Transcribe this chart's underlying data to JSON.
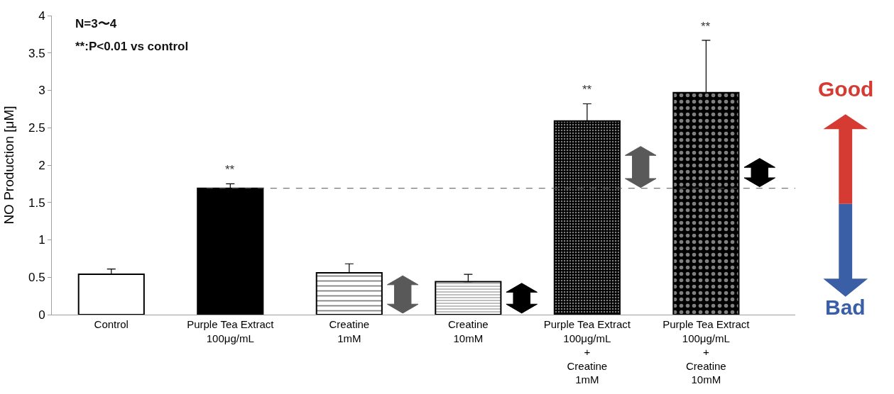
{
  "chart_data": {
    "type": "bar",
    "ylabel": "NO Production [μM]",
    "categories": [
      "Control",
      "Purple Tea Extract\n100μg/mL",
      "Creatine\n1mM",
      "Creatine\n10mM",
      "Purple Tea Extract\n100μg/mL\n+\nCreatine\n1mM",
      "Purple Tea Extract\n100μg/mL\n+\nCreatine\n10mM"
    ],
    "values": [
      0.54,
      1.69,
      0.56,
      0.44,
      2.59,
      2.97
    ],
    "errors": [
      [
        0.54,
        0.61
      ],
      [
        1.69,
        1.75
      ],
      [
        0.56,
        0.68
      ],
      [
        0.44,
        0.54
      ],
      [
        2.59,
        2.82
      ],
      [
        2.97,
        3.67
      ]
    ],
    "colors": [
      "#ffffff",
      "#000000",
      "#000000",
      "#000000",
      "#000000",
      "#000000"
    ],
    "ylim": [
      0,
      4
    ],
    "yticks": [
      0,
      0.5,
      1,
      1.5,
      2,
      2.5,
      3,
      3.5,
      4
    ],
    "ref_lines": [
      {
        "axis": "y",
        "value": 1.69,
        "color": "#555555",
        "line_style": "dashed"
      }
    ],
    "annotations": [
      "N=3〜4",
      "**:P<0.01 vs control",
      "**",
      "**",
      "**",
      "Good",
      "Bad"
    ]
  }
}
